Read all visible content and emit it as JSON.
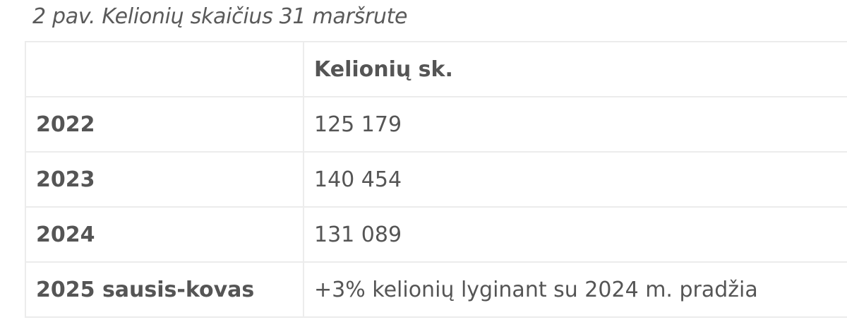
{
  "caption": "2 pav. Kelionių skaičius 31 maršrute",
  "table": {
    "headers": [
      "",
      "Kelionių sk."
    ],
    "rows": [
      {
        "period": "2022",
        "value": "125 179"
      },
      {
        "period": "2023",
        "value": "140 454"
      },
      {
        "period": "2024",
        "value": "131 089"
      },
      {
        "period": "2025 sausis-kovas",
        "value": "+3% kelionių lyginant su 2024 m. pradžia"
      }
    ]
  }
}
